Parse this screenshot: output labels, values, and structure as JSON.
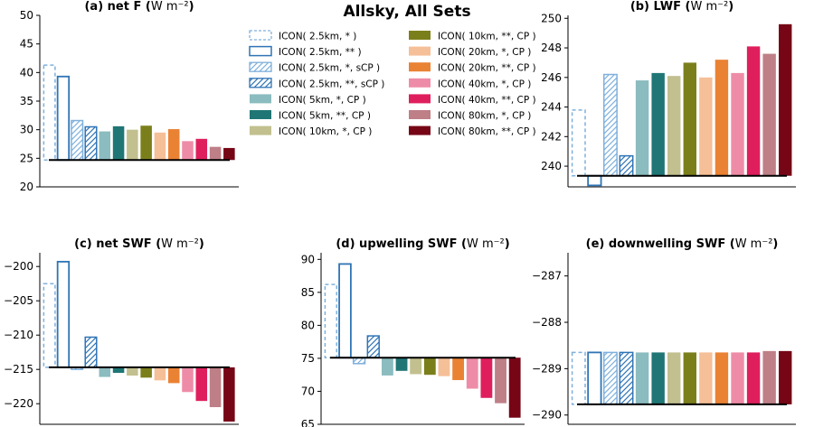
{
  "figure_title": "Allsky, All Sets",
  "legend": [
    {
      "label": "ICON( 2.5km, * )",
      "color": "#7fb0dc",
      "style": "dashed"
    },
    {
      "label": "ICON( 2.5km, ** )",
      "color": "#2f74b5",
      "style": "solid"
    },
    {
      "label": "ICON( 2.5km, *, sCP )",
      "color": "#7fb0dc",
      "style": "hatch"
    },
    {
      "label": "ICON( 2.5km, **, sCP )",
      "color": "#2f74b5",
      "style": "hatch"
    },
    {
      "label": "ICON( 5km, *,  CP )",
      "color": "#8bbcbf",
      "style": "fill"
    },
    {
      "label": "ICON( 5km, **,  CP )",
      "color": "#1f7675",
      "style": "fill"
    },
    {
      "label": "ICON( 10km, *,  CP )",
      "color": "#c2c08e",
      "style": "fill"
    },
    {
      "label": "ICON( 10km, **, CP )",
      "color": "#7b7f1b",
      "style": "fill"
    },
    {
      "label": "ICON( 20km, *,  CP )",
      "color": "#f5bf98",
      "style": "fill"
    },
    {
      "label": "ICON( 20km, **, CP )",
      "color": "#ea8234",
      "style": "fill"
    },
    {
      "label": "ICON( 40km, *,  CP )",
      "color": "#ee8ca7",
      "style": "fill"
    },
    {
      "label": "ICON( 40km, **, CP )",
      "color": "#df1f5d",
      "style": "fill"
    },
    {
      "label": "ICON( 80km, *,  CP )",
      "color": "#be7f86",
      "style": "fill"
    },
    {
      "label": "ICON( 80km, **, CP )",
      "color": "#760616",
      "style": "fill"
    }
  ],
  "chart_data": [
    {
      "type": "bar",
      "title": "(a) net F",
      "unit": "W m⁻²",
      "ylim": [
        20,
        50
      ],
      "yticks": [
        20,
        25,
        30,
        35,
        40,
        45,
        50
      ],
      "baseline": 24.7,
      "values": [
        41.3,
        39.3,
        31.6,
        30.5,
        29.7,
        30.6,
        30.0,
        30.7,
        29.5,
        30.1,
        28.0,
        28.4,
        27.0,
        26.8
      ]
    },
    {
      "type": "bar",
      "title": "(b) LWF",
      "unit": "W m⁻²",
      "ylim": [
        238.6,
        250.2
      ],
      "yticks": [
        240,
        242,
        244,
        246,
        248,
        250
      ],
      "baseline": 239.35,
      "values": [
        243.8,
        238.7,
        246.2,
        240.7,
        245.8,
        246.3,
        246.1,
        247.0,
        246.0,
        247.2,
        246.3,
        248.1,
        247.6,
        249.6
      ]
    },
    {
      "type": "bar",
      "title": "(c) net SWF",
      "unit": "W m⁻²",
      "ylim": [
        -223,
        -198
      ],
      "yticks": [
        -220,
        -215,
        -210,
        -205,
        -200
      ],
      "baseline": -214.7,
      "values": [
        -202.5,
        -199.3,
        -215.0,
        -210.3,
        -216.1,
        -215.5,
        -215.9,
        -216.2,
        -216.6,
        -217.0,
        -218.3,
        -219.6,
        -220.5,
        -222.6
      ]
    },
    {
      "type": "bar",
      "title": "(d) upwelling SWF",
      "unit": "W m⁻²",
      "ylim": [
        65,
        91
      ],
      "yticks": [
        65,
        70,
        75,
        80,
        85,
        90
      ],
      "baseline": 75.1,
      "values": [
        86.2,
        89.3,
        74.2,
        78.4,
        72.4,
        73.1,
        72.6,
        72.5,
        72.3,
        71.7,
        70.4,
        69.0,
        68.2,
        66.0
      ]
    },
    {
      "type": "bar",
      "title": "(e) downwelling SWF",
      "unit": "W m⁻²",
      "ylim": [
        -290.2,
        -286.5
      ],
      "yticks": [
        -290,
        -289,
        -288,
        -287
      ],
      "baseline": -289.77,
      "values": [
        -288.65,
        -288.65,
        -288.65,
        -288.65,
        -288.65,
        -288.65,
        -288.65,
        -288.65,
        -288.65,
        -288.65,
        -288.65,
        -288.65,
        -288.62,
        -288.62
      ]
    }
  ]
}
